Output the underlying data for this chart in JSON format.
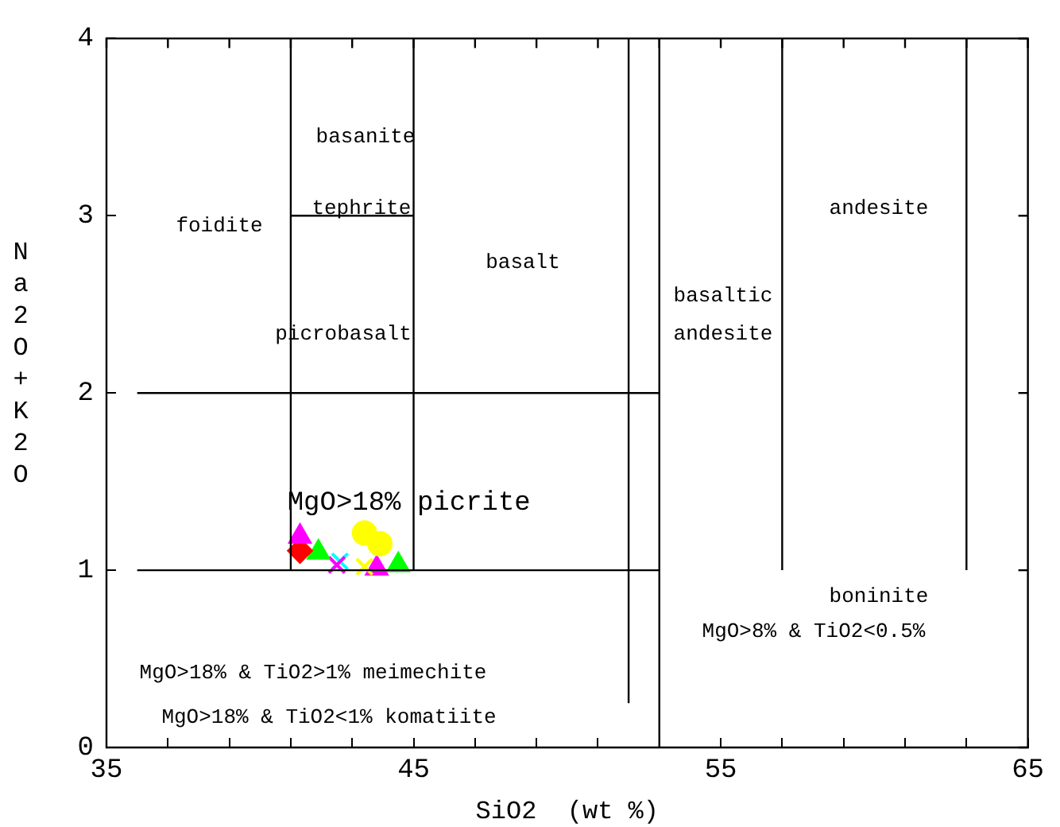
{
  "chart_data": {
    "type": "scatter",
    "xlabel": "SiO2  (wt %)",
    "ylabel": "Na2O+K2O",
    "xlim": [
      35,
      65
    ],
    "ylim": [
      0,
      4
    ],
    "xticks": [
      35,
      {
        "value": 37,
        "label": null
      },
      {
        "value": 39,
        "label": null
      },
      {
        "value": 41,
        "label": null
      },
      {
        "value": 43,
        "label": null
      },
      45,
      {
        "value": 47,
        "label": null
      },
      {
        "value": 49,
        "label": null
      },
      {
        "value": 51,
        "label": null
      },
      {
        "value": 53,
        "label": null
      },
      55,
      {
        "value": 57,
        "label": null
      },
      {
        "value": 59,
        "label": null
      },
      {
        "value": 61,
        "label": null
      },
      {
        "value": 63,
        "label": null
      },
      65
    ],
    "yticks": [
      0,
      1,
      2,
      3,
      4
    ],
    "grid": false,
    "legend": false,
    "series": [
      {
        "type": "line",
        "marker": "none",
        "color": "#000000",
        "x": [
          41,
          41
        ],
        "values": [
          1,
          4
        ]
      },
      {
        "type": "line",
        "marker": "none",
        "color": "#000000",
        "x": [
          45,
          45
        ],
        "values": [
          1,
          4
        ]
      },
      {
        "type": "line",
        "marker": "none",
        "color": "#000000",
        "x": [
          52,
          52
        ],
        "values": [
          0.25,
          4
        ]
      },
      {
        "type": "line",
        "marker": "none",
        "color": "#000000",
        "x": [
          53,
          53
        ],
        "values": [
          0,
          4
        ]
      },
      {
        "type": "line",
        "marker": "none",
        "color": "#000000",
        "x": [
          57,
          57
        ],
        "values": [
          1,
          4
        ]
      },
      {
        "type": "line",
        "marker": "none",
        "color": "#000000",
        "x": [
          63,
          63
        ],
        "values": [
          1,
          4
        ]
      },
      {
        "type": "line",
        "marker": "none",
        "color": "#000000",
        "x": [
          36,
          53
        ],
        "values": [
          2,
          2
        ]
      },
      {
        "type": "line",
        "marker": "none",
        "color": "#000000",
        "x": [
          36,
          53
        ],
        "values": [
          1,
          1
        ]
      },
      {
        "type": "line",
        "marker": "none",
        "color": "#000000",
        "x": [
          41,
          45
        ],
        "values": [
          3,
          3
        ]
      },
      {
        "type": "scatter",
        "marker": "triangle",
        "color": "#ff00ff",
        "x": [
          41.3
        ],
        "values": [
          1.19
        ]
      },
      {
        "type": "scatter",
        "marker": "diamond",
        "color": "#ff0000",
        "x": [
          41.3
        ],
        "values": [
          1.11
        ]
      },
      {
        "type": "scatter",
        "marker": "triangle",
        "color": "#00ff00",
        "x": [
          41.9
        ],
        "values": [
          1.1
        ]
      },
      {
        "type": "scatter",
        "marker": "cross",
        "color": "#ff00ff",
        "x": [
          42.5
        ],
        "values": [
          1.03
        ]
      },
      {
        "type": "scatter",
        "marker": "cross",
        "color": "#00ffff",
        "x": [
          42.6
        ],
        "values": [
          1.05
        ]
      },
      {
        "type": "scatter",
        "marker": "cross",
        "color": "#ffff00",
        "x": [
          43.4
        ],
        "values": [
          1.02
        ]
      },
      {
        "type": "scatter",
        "marker": "circle",
        "color": "#ffff00",
        "x": [
          43.4
        ],
        "values": [
          1.21
        ]
      },
      {
        "type": "scatter",
        "marker": "circle",
        "color": "#ffff00",
        "x": [
          43.9
        ],
        "values": [
          1.15
        ]
      },
      {
        "type": "scatter",
        "marker": "triangle",
        "color": "#ff00ff",
        "x": [
          43.8
        ],
        "values": [
          1.01
        ]
      },
      {
        "type": "scatter",
        "marker": "triangle",
        "color": "#00ff00",
        "x": [
          44.5
        ],
        "values": [
          1.03
        ]
      }
    ],
    "annotations": [
      "basanite",
      {
        "text": "tephrite",
        "x": 43.3,
        "y": 3.04
      },
      "foidite",
      "basalt",
      "picrobasalt",
      "basaltic",
      "andesite",
      "andesite",
      {
        "text": "MgO>18% picrite",
        "x": 44.85,
        "y": 1.38
      },
      "boninite",
      "MgO>8% & TiO2<0.5%",
      "MgO>18% & TiO2>1% meimechite",
      "MgO>18% & TiO2<1% komatiite"
    ]
  }
}
